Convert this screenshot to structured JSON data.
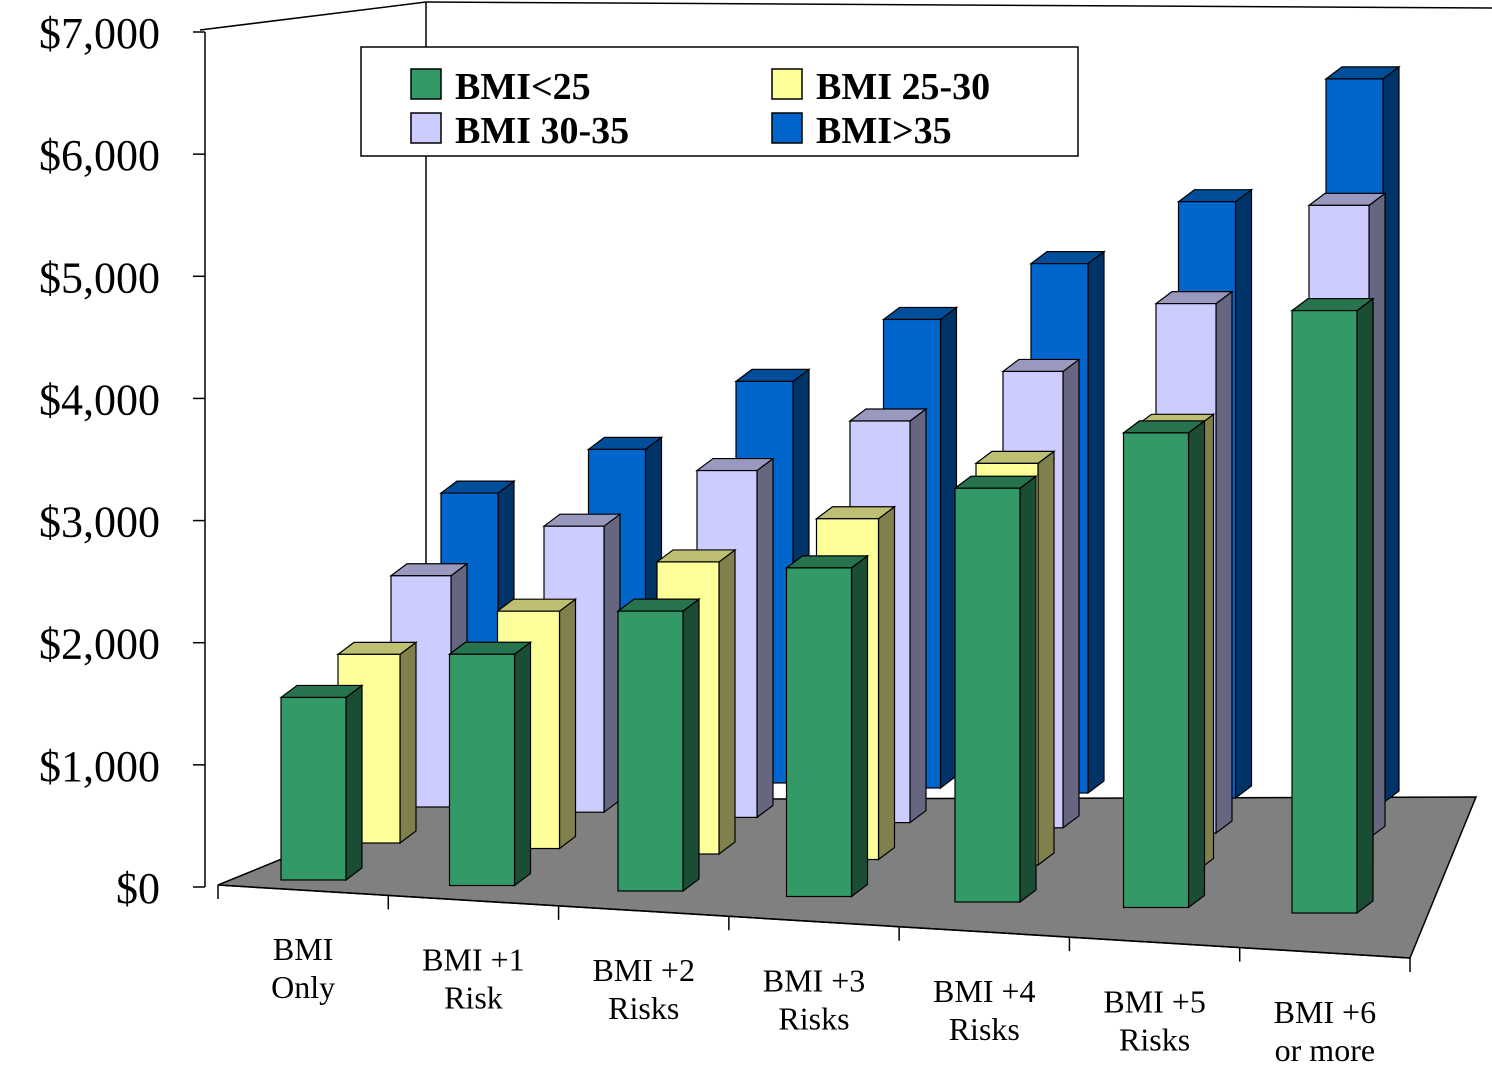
{
  "chart_data": {
    "type": "bar",
    "style": "3d-clustered-bar",
    "categories": [
      [
        "BMI",
        "Only"
      ],
      [
        "BMI +1",
        "Risk"
      ],
      [
        "BMI +2",
        "Risks"
      ],
      [
        "BMI +3",
        "Risks"
      ],
      [
        "BMI +4",
        "Risks"
      ],
      [
        "BMI +5",
        "Risks"
      ],
      [
        "BMI +6",
        "or more"
      ]
    ],
    "series": [
      {
        "name": "BMI<25",
        "color": "#339966",
        "values": [
          1500,
          1900,
          2300,
          2700,
          3400,
          3900,
          4950
        ]
      },
      {
        "name": "BMI 25-30",
        "color": "#FFFF99",
        "values": [
          1550,
          1950,
          2400,
          2800,
          3300,
          3650,
          4600
        ]
      },
      {
        "name": "BMI 30-35",
        "color": "#CCCCFF",
        "values": [
          1900,
          2350,
          2850,
          3300,
          3750,
          4350,
          5200
        ]
      },
      {
        "name": "BMI>35",
        "color": "#0066CC",
        "values": [
          2300,
          2700,
          3300,
          3850,
          4350,
          4900,
          5950
        ]
      }
    ],
    "y_ticks": [
      "$0",
      "$1,000",
      "$2,000",
      "$3,000",
      "$4,000",
      "$5,000",
      "$6,000",
      "$7,000"
    ],
    "ylim": [
      0,
      7000
    ],
    "legend_position": "top-center",
    "floor_color": "#808080"
  }
}
